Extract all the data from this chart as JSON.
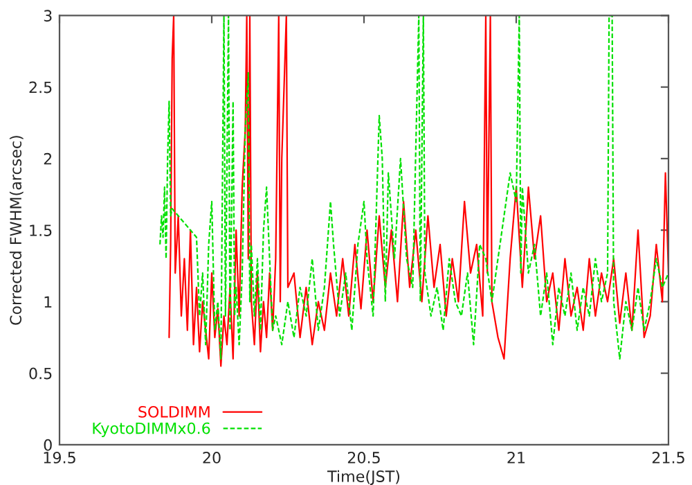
{
  "chart_data": {
    "type": "line",
    "xlabel": "Time(JST)",
    "ylabel": "Corrected FWHM(arcsec)",
    "xlim": [
      19.5,
      21.5
    ],
    "xticks": [
      19.5,
      20,
      20.5,
      21,
      21.5
    ],
    "ylim": [
      0,
      3
    ],
    "yticks": [
      0,
      0.5,
      1,
      1.5,
      2,
      2.5,
      3
    ],
    "grid": false,
    "legend": "bottom left",
    "series": [
      {
        "name": "SOLDIMM",
        "color": "#ff0000",
        "line_style": "solid",
        "x": [
          19.86,
          19.865,
          19.87,
          19.875,
          19.88,
          19.89,
          19.9,
          19.91,
          19.92,
          19.93,
          19.94,
          19.95,
          19.96,
          19.97,
          19.98,
          19.99,
          20.0,
          20.01,
          20.02,
          20.03,
          20.04,
          20.05,
          20.06,
          20.07,
          20.08,
          20.09,
          20.1,
          20.11,
          20.115,
          20.12,
          20.125,
          20.13,
          20.14,
          20.15,
          20.16,
          20.17,
          20.18,
          20.19,
          20.2,
          20.21,
          20.22,
          20.225,
          20.23,
          20.245,
          20.25,
          20.27,
          20.29,
          20.31,
          20.33,
          20.35,
          20.37,
          20.39,
          20.41,
          20.43,
          20.45,
          20.47,
          20.49,
          20.51,
          20.53,
          20.55,
          20.57,
          20.59,
          20.61,
          20.63,
          20.65,
          20.67,
          20.69,
          20.71,
          20.73,
          20.75,
          20.77,
          20.79,
          20.81,
          20.83,
          20.85,
          20.87,
          20.89,
          20.9,
          20.905,
          20.915,
          20.92,
          20.94,
          20.96,
          20.98,
          21.0,
          21.02,
          21.04,
          21.06,
          21.08,
          21.1,
          21.12,
          21.14,
          21.16,
          21.18,
          21.2,
          21.22,
          21.24,
          21.26,
          21.28,
          21.3,
          21.32,
          21.34,
          21.36,
          21.38,
          21.4,
          21.42,
          21.44,
          21.46,
          21.48,
          21.49,
          21.5
        ],
        "values": [
          0.75,
          1.4,
          2.7,
          3.0,
          1.2,
          1.6,
          0.9,
          1.3,
          0.8,
          1.5,
          0.7,
          1.1,
          0.65,
          1.0,
          0.8,
          0.6,
          1.2,
          0.75,
          0.95,
          0.55,
          0.9,
          0.7,
          1.1,
          0.6,
          1.5,
          0.9,
          1.8,
          2.2,
          3.0,
          1.3,
          3.0,
          1.0,
          0.7,
          1.2,
          0.65,
          1.0,
          0.75,
          1.2,
          0.8,
          1.3,
          3.0,
          1.0,
          2.0,
          3.0,
          1.1,
          1.2,
          0.75,
          1.1,
          0.7,
          1.0,
          0.8,
          1.2,
          0.9,
          1.3,
          0.9,
          1.4,
          0.95,
          1.5,
          1.0,
          1.6,
          1.1,
          1.5,
          1.0,
          1.7,
          1.1,
          1.5,
          1.0,
          1.6,
          1.1,
          1.4,
          0.9,
          1.3,
          1.0,
          1.7,
          1.2,
          1.4,
          0.9,
          3.0,
          1.2,
          3.0,
          1.0,
          0.75,
          0.6,
          1.3,
          1.8,
          1.1,
          1.8,
          1.3,
          1.6,
          1.0,
          1.2,
          0.8,
          1.3,
          0.9,
          1.1,
          0.8,
          1.3,
          0.9,
          1.2,
          1.0,
          1.3,
          0.85,
          1.2,
          0.8,
          1.5,
          0.75,
          0.9,
          1.4,
          1.0,
          1.9,
          1.2
        ]
      },
      {
        "name": "KyotoDIMMx0.6",
        "color": "#00e000",
        "line_style": "dashed",
        "x": [
          19.83,
          19.835,
          19.84,
          19.845,
          19.85,
          19.855,
          19.86,
          19.865,
          19.87,
          19.95,
          19.96,
          19.97,
          19.98,
          19.99,
          20.0,
          20.01,
          20.02,
          20.03,
          20.04,
          20.045,
          20.055,
          20.06,
          20.07,
          20.075,
          20.08,
          20.09,
          20.1,
          20.11,
          20.12,
          20.125,
          20.13,
          20.14,
          20.15,
          20.16,
          20.17,
          20.18,
          20.19,
          20.2,
          20.21,
          20.23,
          20.25,
          20.27,
          20.29,
          20.31,
          20.33,
          20.35,
          20.37,
          20.39,
          20.4,
          20.42,
          20.44,
          20.46,
          20.48,
          20.5,
          20.51,
          20.53,
          20.55,
          20.56,
          20.57,
          20.58,
          20.6,
          20.62,
          20.64,
          20.66,
          20.68,
          20.685,
          20.695,
          20.7,
          20.72,
          20.74,
          20.76,
          20.78,
          20.8,
          20.82,
          20.84,
          20.86,
          20.88,
          20.9,
          20.92,
          20.94,
          20.96,
          20.98,
          21.0,
          21.01,
          21.015,
          21.02,
          21.04,
          21.06,
          21.08,
          21.1,
          21.12,
          21.14,
          21.16,
          21.18,
          21.2,
          21.22,
          21.24,
          21.26,
          21.28,
          21.3,
          21.305,
          21.315,
          21.32,
          21.34,
          21.36,
          21.38,
          21.4,
          21.42,
          21.44,
          21.46,
          21.48,
          21.5
        ],
        "values": [
          1.4,
          1.6,
          1.45,
          1.8,
          1.3,
          2.0,
          2.4,
          1.6,
          1.65,
          1.45,
          0.9,
          1.2,
          0.7,
          1.4,
          1.7,
          0.8,
          1.0,
          0.6,
          3.0,
          0.9,
          3.0,
          0.8,
          2.4,
          0.9,
          1.1,
          0.7,
          1.2,
          2.2,
          2.6,
          1.0,
          1.4,
          0.9,
          1.3,
          0.8,
          1.5,
          1.8,
          1.3,
          0.8,
          0.9,
          0.7,
          1.0,
          0.75,
          1.1,
          0.9,
          1.3,
          0.8,
          1.1,
          1.7,
          1.4,
          0.9,
          1.2,
          0.8,
          1.4,
          1.7,
          1.3,
          0.9,
          2.3,
          2.0,
          1.0,
          1.9,
          1.3,
          2.0,
          1.3,
          1.1,
          3.0,
          1.0,
          3.0,
          1.2,
          0.9,
          1.1,
          0.8,
          1.3,
          1.0,
          0.9,
          1.2,
          0.7,
          1.4,
          1.3,
          1.0,
          1.3,
          1.6,
          1.9,
          1.7,
          3.0,
          1.2,
          1.8,
          1.2,
          1.4,
          0.9,
          1.2,
          0.7,
          1.1,
          0.9,
          1.2,
          0.8,
          1.1,
          0.9,
          1.3,
          1.0,
          1.2,
          3.0,
          3.0,
          1.0,
          0.6,
          1.0,
          0.8,
          1.1,
          0.8,
          1.0,
          1.3,
          1.1,
          1.2
        ]
      }
    ]
  }
}
